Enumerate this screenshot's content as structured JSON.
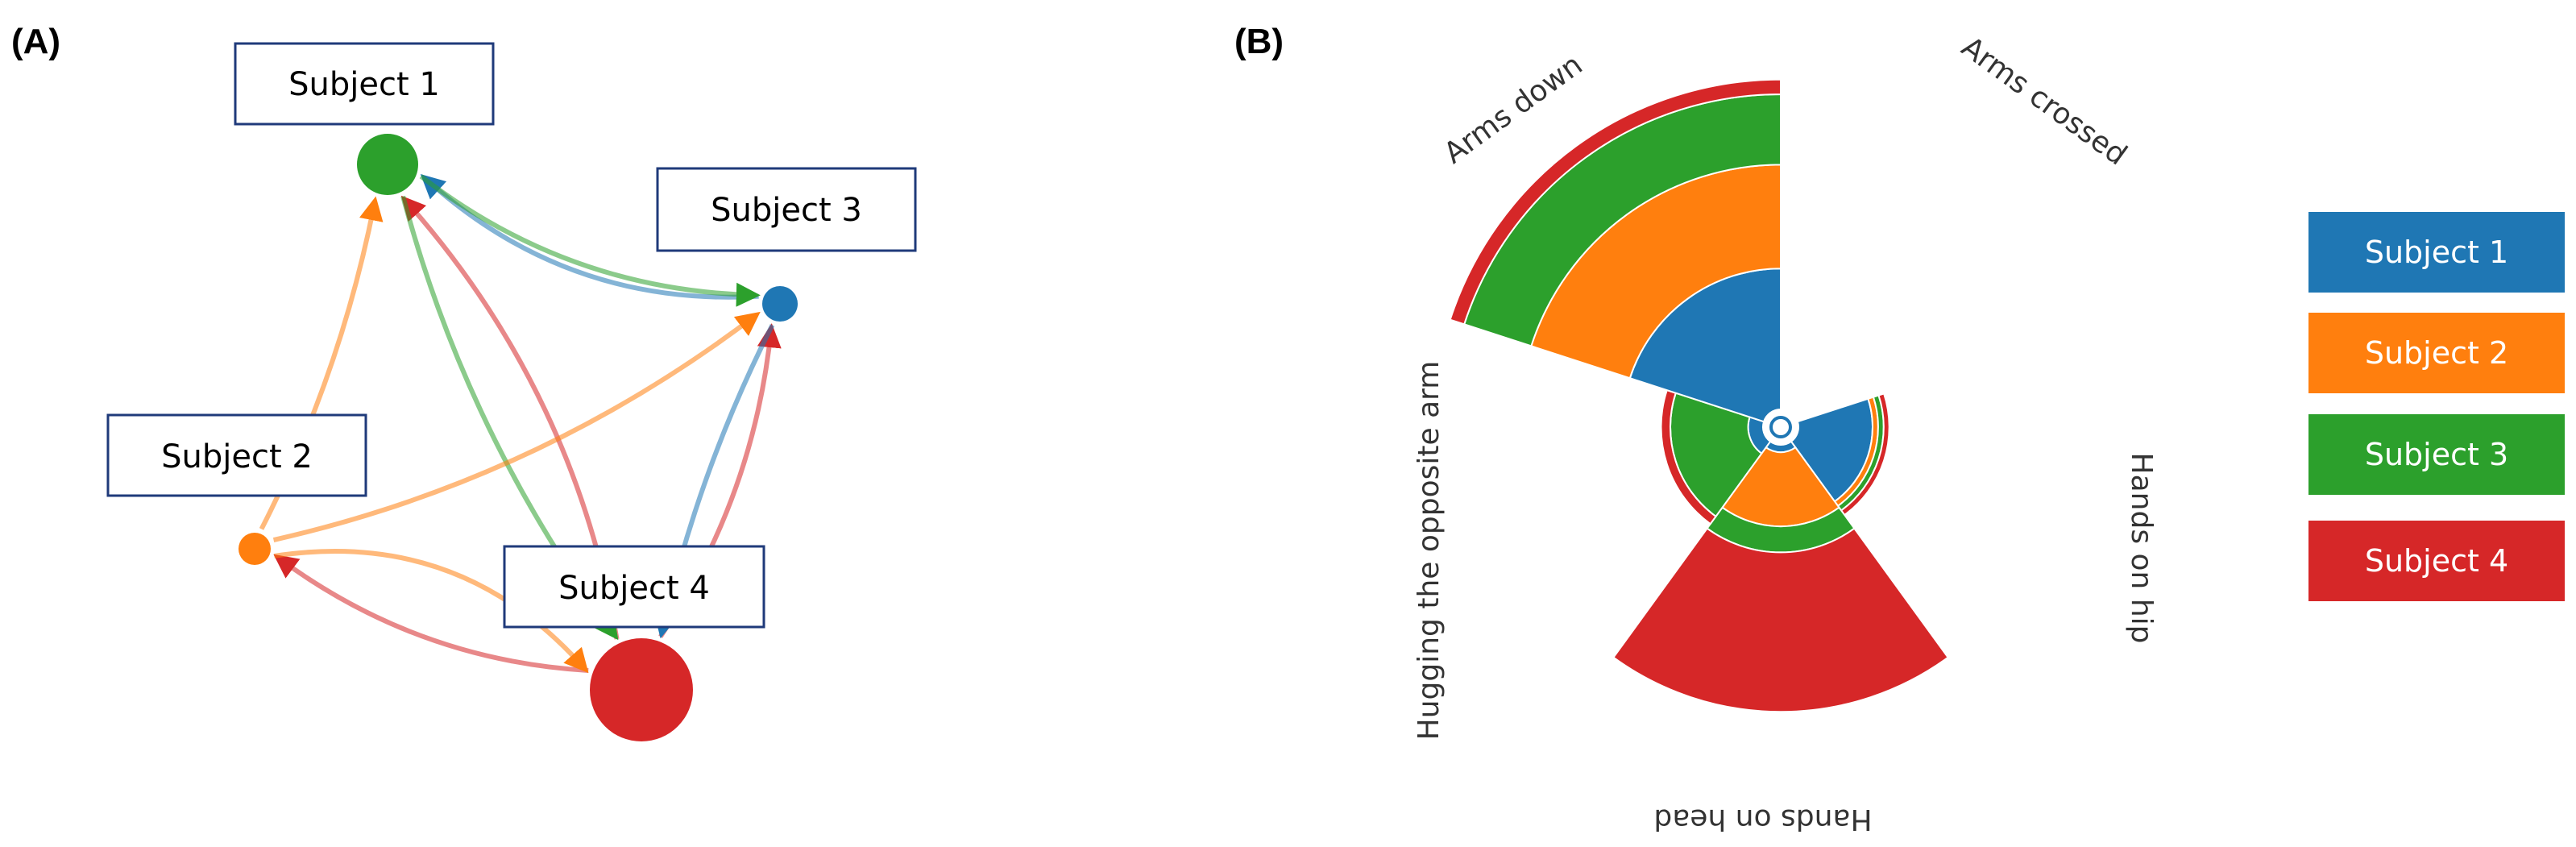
{
  "panels": {
    "a_label": "(A)",
    "b_label": "(B)"
  },
  "network": {
    "nodes": [
      {
        "id": "s1",
        "label": "Subject  1",
        "color": "#2ca02c"
      },
      {
        "id": "s2",
        "label": "Subject  2",
        "color": "#ff7f0e"
      },
      {
        "id": "s3",
        "label": "Subject  3",
        "color": "#1f77b4"
      },
      {
        "id": "s4",
        "label": "Subject  4",
        "color": "#d62728"
      }
    ],
    "edges": [
      {
        "from": "s3",
        "to": "s1",
        "color": "#1f77b4"
      },
      {
        "from": "s4",
        "to": "s1",
        "color": "#d62728"
      },
      {
        "from": "s4",
        "to": "s3",
        "color": "#d62728"
      },
      {
        "from": "s4",
        "to": "s2",
        "color": "#d62728"
      },
      {
        "from": "s1",
        "to": "s4",
        "color": "#2ca02c"
      },
      {
        "from": "s1",
        "to": "s3",
        "color": "#2ca02c"
      },
      {
        "from": "s2",
        "to": "s4",
        "color": "#ff7f0e"
      },
      {
        "from": "s2",
        "to": "s3",
        "color": "#ff7f0e"
      },
      {
        "from": "s2",
        "to": "s1",
        "color": "#ff7f0e"
      },
      {
        "from": "s3",
        "to": "s4",
        "color": "#1f77b4"
      }
    ]
  },
  "chart_data": {
    "type": "polar-stacked-bar",
    "categories": [
      "Arms crossed",
      "Hands on hip",
      "Hands on head",
      "Hugging the opposite arm",
      "Arms down"
    ],
    "series": [
      {
        "name": "Subject  1",
        "color": "#1f77b4",
        "values": [
          0,
          2.0,
          0.2,
          0.4,
          3.8
        ]
      },
      {
        "name": "Subject  2",
        "color": "#ff7f0e",
        "values": [
          0,
          0.15,
          2.0,
          0,
          2.8
        ]
      },
      {
        "name": "Subject  3",
        "color": "#2ca02c",
        "values": [
          0,
          0.15,
          0.7,
          2.1,
          1.9
        ]
      },
      {
        "name": "Subject  4",
        "color": "#d62728",
        "values": [
          0,
          0.15,
          4.3,
          0.25,
          0.4
        ]
      }
    ],
    "legend": "right"
  }
}
